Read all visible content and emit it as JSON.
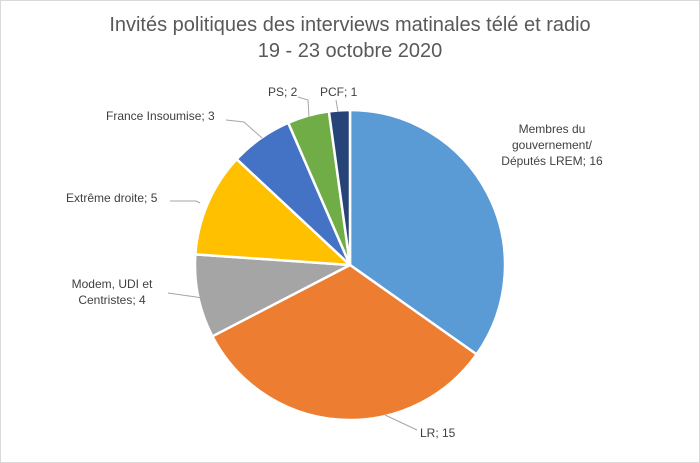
{
  "chart_data": {
    "type": "pie",
    "title": "Invités politiques des interviews matinales télé et radio",
    "subtitle": "19 - 23 octobre 2020",
    "start_angle_deg": 0,
    "direction": "clockwise",
    "slices": [
      {
        "label": "Membres du gouvernement/ Députés LREM",
        "value": 16,
        "color": "#5B9BD5",
        "label_lines": [
          "Membres du",
          "gouvernement/",
          "Députés LREM; 16"
        ]
      },
      {
        "label": "LR",
        "value": 15,
        "color": "#ED7D31",
        "label_lines": [
          "LR; 15"
        ]
      },
      {
        "label": "Modem, UDI et Centristes",
        "value": 4,
        "color": "#A5A5A5",
        "label_lines": [
          "Modem, UDI et",
          "Centristes; 4"
        ]
      },
      {
        "label": "Extrême droite",
        "value": 5,
        "color": "#FFC000",
        "label_lines": [
          "Extrême droite; 5"
        ]
      },
      {
        "label": "France Insoumise",
        "value": 3,
        "color": "#4472C4",
        "label_lines": [
          "France Insoumise; 3"
        ]
      },
      {
        "label": "PS",
        "value": 2,
        "color": "#70AD47",
        "label_lines": [
          "PS; 2"
        ]
      },
      {
        "label": "PCF",
        "value": 1,
        "color": "#264478",
        "label_lines": [
          "PCF; 1"
        ]
      }
    ],
    "legend": "none",
    "data_labels": "outside, category name and value"
  }
}
